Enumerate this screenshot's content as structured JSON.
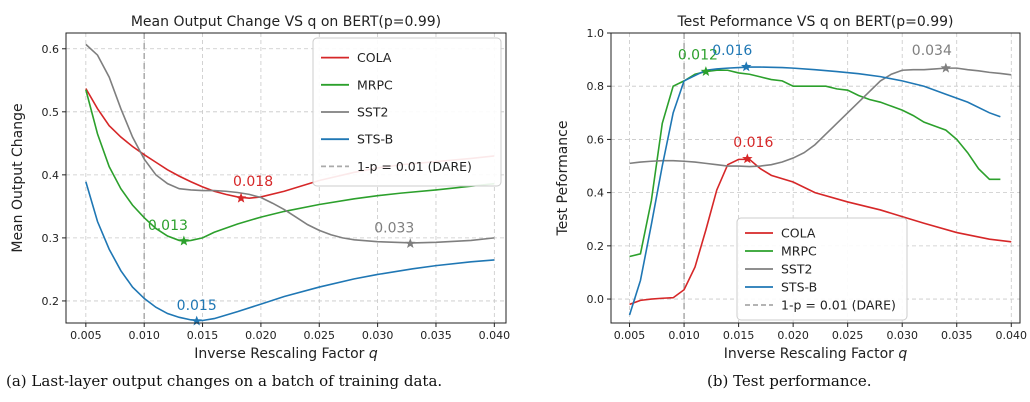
{
  "captions": {
    "a": "(a) Last-layer output changes on a batch of training data.",
    "b": "(b) Test performance."
  },
  "chart_data": [
    {
      "type": "line",
      "title": "Mean Output Change VS q on BERT(p=0.99)",
      "xlabel": "Inverse Rescaling Factor q",
      "ylabel": "Mean Output Change",
      "xlim": [
        0.0033,
        0.041
      ],
      "ylim": [
        0.165,
        0.625
      ],
      "xticks": [
        0.005,
        0.01,
        0.015,
        0.02,
        0.025,
        0.03,
        0.035,
        0.04
      ],
      "xtick_labels": [
        "0.005",
        "0.010",
        "0.015",
        "0.020",
        "0.025",
        "0.030",
        "0.035",
        "0.040"
      ],
      "yticks": [
        0.2,
        0.3,
        0.4,
        0.5,
        0.6
      ],
      "ytick_labels": [
        "0.2",
        "0.3",
        "0.4",
        "0.5",
        "0.6"
      ],
      "grid": true,
      "legend_position": "top-right",
      "vline": {
        "x": 0.01,
        "label": "1-p = 0.01 (DARE)",
        "color": "#aaaaaa"
      },
      "series": [
        {
          "name": "COLA",
          "color": "#d62728",
          "x": [
            0.005,
            0.006,
            0.007,
            0.008,
            0.009,
            0.01,
            0.011,
            0.012,
            0.013,
            0.014,
            0.015,
            0.016,
            0.017,
            0.018,
            0.019,
            0.02,
            0.022,
            0.025,
            0.028,
            0.03,
            0.032,
            0.035,
            0.038,
            0.04
          ],
          "y": [
            0.537,
            0.505,
            0.478,
            0.46,
            0.445,
            0.432,
            0.42,
            0.408,
            0.398,
            0.389,
            0.381,
            0.374,
            0.369,
            0.365,
            0.363,
            0.365,
            0.374,
            0.391,
            0.404,
            0.411,
            0.416,
            0.421,
            0.426,
            0.43
          ],
          "marker": {
            "x": 0.0183,
            "y": 0.363,
            "label": "0.018"
          }
        },
        {
          "name": "MRPC",
          "color": "#2ca02c",
          "x": [
            0.005,
            0.006,
            0.007,
            0.008,
            0.009,
            0.01,
            0.011,
            0.012,
            0.013,
            0.0135,
            0.014,
            0.015,
            0.016,
            0.018,
            0.02,
            0.022,
            0.025,
            0.028,
            0.03,
            0.032,
            0.035,
            0.038,
            0.04
          ],
          "y": [
            0.535,
            0.465,
            0.413,
            0.378,
            0.352,
            0.332,
            0.315,
            0.303,
            0.296,
            0.295,
            0.296,
            0.3,
            0.309,
            0.322,
            0.333,
            0.342,
            0.353,
            0.362,
            0.367,
            0.371,
            0.376,
            0.382,
            0.386
          ],
          "marker": {
            "x": 0.0134,
            "y": 0.295,
            "label": "0.013"
          }
        },
        {
          "name": "SST2",
          "color": "#7f7f7f",
          "x": [
            0.005,
            0.006,
            0.007,
            0.008,
            0.009,
            0.01,
            0.011,
            0.012,
            0.013,
            0.014,
            0.015,
            0.016,
            0.017,
            0.018,
            0.019,
            0.02,
            0.021,
            0.022,
            0.023,
            0.024,
            0.025,
            0.026,
            0.027,
            0.028,
            0.03,
            0.033,
            0.035,
            0.038,
            0.04
          ],
          "y": [
            0.607,
            0.59,
            0.555,
            0.505,
            0.46,
            0.425,
            0.4,
            0.386,
            0.378,
            0.376,
            0.375,
            0.375,
            0.374,
            0.372,
            0.369,
            0.364,
            0.355,
            0.345,
            0.333,
            0.321,
            0.312,
            0.305,
            0.3,
            0.297,
            0.294,
            0.292,
            0.293,
            0.296,
            0.3
          ],
          "marker": {
            "x": 0.0328,
            "y": 0.291,
            "label": "0.033"
          }
        },
        {
          "name": "STS-B",
          "color": "#1f77b4",
          "x": [
            0.005,
            0.006,
            0.007,
            0.008,
            0.009,
            0.01,
            0.011,
            0.012,
            0.013,
            0.014,
            0.0145,
            0.015,
            0.016,
            0.018,
            0.02,
            0.022,
            0.025,
            0.028,
            0.03,
            0.033,
            0.035,
            0.038,
            0.04
          ],
          "y": [
            0.389,
            0.326,
            0.282,
            0.248,
            0.222,
            0.204,
            0.19,
            0.18,
            0.174,
            0.17,
            0.169,
            0.169,
            0.172,
            0.183,
            0.195,
            0.207,
            0.222,
            0.235,
            0.242,
            0.251,
            0.256,
            0.262,
            0.265
          ],
          "marker": {
            "x": 0.0145,
            "y": 0.168,
            "label": "0.015"
          }
        }
      ]
    },
    {
      "type": "line",
      "title": "Test Peformance VS q on BERT(p=0.99)",
      "xlabel": "Inverse Rescaling Factor q",
      "ylabel": "Test Peformance",
      "xlim": [
        0.0033,
        0.0408
      ],
      "ylim": [
        -0.09,
        1.0
      ],
      "xticks": [
        0.005,
        0.01,
        0.015,
        0.02,
        0.025,
        0.03,
        0.035,
        0.04
      ],
      "xtick_labels": [
        "0.005",
        "0.010",
        "0.015",
        "0.020",
        "0.025",
        "0.030",
        "0.035",
        "0.040"
      ],
      "yticks": [
        0.0,
        0.2,
        0.4,
        0.6,
        0.8,
        1.0
      ],
      "ytick_labels": [
        "0.0",
        "0.2",
        "0.4",
        "0.6",
        "0.8",
        "1.0"
      ],
      "grid": true,
      "legend_position": "bottom-center",
      "vline": {
        "x": 0.01,
        "label": "1-p = 0.01 (DARE)",
        "color": "#aaaaaa"
      },
      "series": [
        {
          "name": "COLA",
          "color": "#d62728",
          "x": [
            0.005,
            0.006,
            0.007,
            0.008,
            0.009,
            0.01,
            0.011,
            0.012,
            0.013,
            0.014,
            0.015,
            0.016,
            0.017,
            0.018,
            0.02,
            0.022,
            0.025,
            0.028,
            0.03,
            0.032,
            0.035,
            0.038,
            0.04
          ],
          "y": [
            -0.02,
            -0.005,
            0.0,
            0.003,
            0.005,
            0.035,
            0.12,
            0.26,
            0.41,
            0.505,
            0.525,
            0.525,
            0.49,
            0.465,
            0.44,
            0.4,
            0.365,
            0.335,
            0.31,
            0.285,
            0.25,
            0.225,
            0.215
          ],
          "marker": {
            "x": 0.0158,
            "y": 0.527,
            "label": "0.016"
          }
        },
        {
          "name": "MRPC",
          "color": "#2ca02c",
          "x": [
            0.005,
            0.006,
            0.007,
            0.008,
            0.009,
            0.01,
            0.011,
            0.012,
            0.013,
            0.014,
            0.015,
            0.016,
            0.017,
            0.018,
            0.019,
            0.02,
            0.021,
            0.022,
            0.023,
            0.024,
            0.025,
            0.026,
            0.027,
            0.028,
            0.029,
            0.03,
            0.031,
            0.032,
            0.033,
            0.034,
            0.035,
            0.036,
            0.037,
            0.038,
            0.039
          ],
          "y": [
            0.16,
            0.17,
            0.37,
            0.66,
            0.8,
            0.82,
            0.845,
            0.855,
            0.86,
            0.86,
            0.85,
            0.845,
            0.835,
            0.825,
            0.82,
            0.8,
            0.8,
            0.8,
            0.8,
            0.79,
            0.785,
            0.765,
            0.75,
            0.74,
            0.725,
            0.71,
            0.69,
            0.665,
            0.65,
            0.635,
            0.6,
            0.55,
            0.49,
            0.45,
            0.45
          ],
          "marker": {
            "x": 0.012,
            "y": 0.855,
            "label": "0.012"
          }
        },
        {
          "name": "SST2",
          "color": "#7f7f7f",
          "x": [
            0.005,
            0.006,
            0.007,
            0.008,
            0.009,
            0.01,
            0.011,
            0.012,
            0.013,
            0.014,
            0.015,
            0.016,
            0.017,
            0.018,
            0.019,
            0.02,
            0.021,
            0.022,
            0.023,
            0.024,
            0.025,
            0.026,
            0.027,
            0.028,
            0.029,
            0.03,
            0.031,
            0.032,
            0.033,
            0.034,
            0.035,
            0.036,
            0.037,
            0.038,
            0.039,
            0.04
          ],
          "y": [
            0.51,
            0.515,
            0.518,
            0.52,
            0.52,
            0.518,
            0.515,
            0.51,
            0.505,
            0.5,
            0.5,
            0.498,
            0.5,
            0.505,
            0.515,
            0.53,
            0.55,
            0.58,
            0.62,
            0.66,
            0.7,
            0.74,
            0.78,
            0.82,
            0.845,
            0.86,
            0.862,
            0.862,
            0.865,
            0.868,
            0.868,
            0.862,
            0.858,
            0.852,
            0.848,
            0.843
          ],
          "marker": {
            "x": 0.034,
            "y": 0.868,
            "label": "0.034"
          }
        },
        {
          "name": "STS-B",
          "color": "#1f77b4",
          "x": [
            0.005,
            0.006,
            0.007,
            0.008,
            0.009,
            0.01,
            0.011,
            0.012,
            0.013,
            0.014,
            0.015,
            0.016,
            0.017,
            0.018,
            0.019,
            0.02,
            0.022,
            0.024,
            0.026,
            0.028,
            0.03,
            0.032,
            0.034,
            0.036,
            0.038,
            0.039
          ],
          "y": [
            -0.06,
            0.07,
            0.28,
            0.5,
            0.7,
            0.82,
            0.84,
            0.86,
            0.865,
            0.868,
            0.87,
            0.872,
            0.872,
            0.871,
            0.87,
            0.868,
            0.862,
            0.855,
            0.847,
            0.836,
            0.82,
            0.8,
            0.77,
            0.74,
            0.7,
            0.685
          ],
          "marker": {
            "x": 0.0157,
            "y": 0.873,
            "label": "0.016"
          }
        }
      ]
    }
  ]
}
